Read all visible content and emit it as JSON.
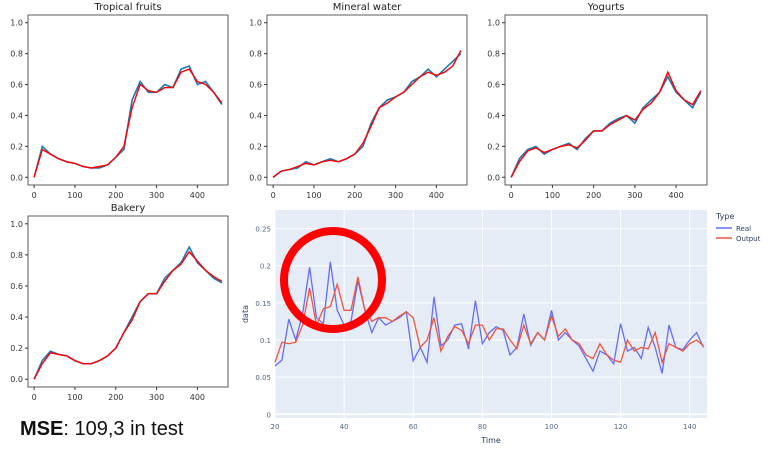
{
  "chart_data": [
    {
      "type": "line",
      "title": "Tropical fruits",
      "x": [
        0,
        20,
        40,
        60,
        80,
        100,
        120,
        140,
        160,
        180,
        200,
        220,
        240,
        260,
        280,
        300,
        320,
        340,
        360,
        380,
        400,
        420,
        440,
        460
      ],
      "series": [
        {
          "values": [
            0,
            0.2,
            0.15,
            0.12,
            0.1,
            0.09,
            0.07,
            0.06,
            0.06,
            0.08,
            0.13,
            0.18,
            0.5,
            0.62,
            0.55,
            0.55,
            0.6,
            0.58,
            0.7,
            0.72,
            0.6,
            0.62,
            0.55,
            0.47
          ],
          "color": "#1f77b4"
        },
        {
          "values": [
            0,
            0.18,
            0.15,
            0.12,
            0.1,
            0.09,
            0.07,
            0.06,
            0.07,
            0.08,
            0.13,
            0.2,
            0.45,
            0.6,
            0.56,
            0.55,
            0.58,
            0.58,
            0.68,
            0.7,
            0.62,
            0.6,
            0.55,
            0.48
          ],
          "color": "#ff0000"
        }
      ],
      "xticks": [
        0,
        100,
        200,
        300,
        400
      ],
      "yticks": [
        "0.0",
        "0.2",
        "0.4",
        "0.6",
        "0.8",
        "1.0"
      ],
      "xlim": [
        -15,
        475
      ],
      "ylim": [
        -0.05,
        1.05
      ]
    },
    {
      "type": "line",
      "title": "Mineral water",
      "x": [
        0,
        20,
        40,
        60,
        80,
        100,
        120,
        140,
        160,
        180,
        200,
        220,
        240,
        260,
        280,
        300,
        320,
        340,
        360,
        380,
        400,
        420,
        440,
        460
      ],
      "series": [
        {
          "values": [
            0,
            0.04,
            0.05,
            0.06,
            0.1,
            0.08,
            0.1,
            0.12,
            0.1,
            0.12,
            0.15,
            0.2,
            0.35,
            0.45,
            0.5,
            0.52,
            0.55,
            0.62,
            0.65,
            0.7,
            0.65,
            0.7,
            0.75,
            0.8
          ],
          "color": "#1f77b4"
        },
        {
          "values": [
            0,
            0.04,
            0.05,
            0.07,
            0.09,
            0.08,
            0.1,
            0.11,
            0.1,
            0.12,
            0.15,
            0.22,
            0.33,
            0.45,
            0.48,
            0.52,
            0.55,
            0.6,
            0.65,
            0.68,
            0.66,
            0.68,
            0.72,
            0.82
          ],
          "color": "#ff0000"
        }
      ],
      "xticks": [
        0,
        100,
        200,
        300,
        400
      ],
      "yticks": [
        "0.0",
        "0.2",
        "0.4",
        "0.6",
        "0.8",
        "1.0"
      ],
      "xlim": [
        -15,
        475
      ],
      "ylim": [
        -0.05,
        1.05
      ]
    },
    {
      "type": "line",
      "title": "Yogurts",
      "x": [
        0,
        20,
        40,
        60,
        80,
        100,
        120,
        140,
        160,
        180,
        200,
        220,
        240,
        260,
        280,
        300,
        320,
        340,
        360,
        380,
        400,
        420,
        440,
        460
      ],
      "series": [
        {
          "values": [
            0,
            0.12,
            0.18,
            0.2,
            0.15,
            0.18,
            0.2,
            0.22,
            0.18,
            0.25,
            0.3,
            0.3,
            0.35,
            0.38,
            0.4,
            0.35,
            0.45,
            0.5,
            0.55,
            0.65,
            0.55,
            0.5,
            0.45,
            0.55
          ],
          "color": "#1f77b4"
        },
        {
          "values": [
            0,
            0.1,
            0.17,
            0.19,
            0.16,
            0.18,
            0.2,
            0.21,
            0.19,
            0.24,
            0.3,
            0.3,
            0.34,
            0.37,
            0.4,
            0.37,
            0.44,
            0.48,
            0.55,
            0.68,
            0.56,
            0.5,
            0.47,
            0.56
          ],
          "color": "#ff0000"
        }
      ],
      "xticks": [
        0,
        100,
        200,
        300,
        400
      ],
      "yticks": [
        "0.0",
        "0.2",
        "0.4",
        "0.6",
        "0.8",
        "1.0"
      ],
      "xlim": [
        -15,
        475
      ],
      "ylim": [
        -0.05,
        1.05
      ]
    },
    {
      "type": "line",
      "title": "Bakery",
      "x": [
        0,
        20,
        40,
        60,
        80,
        100,
        120,
        140,
        160,
        180,
        200,
        220,
        240,
        260,
        280,
        300,
        320,
        340,
        360,
        380,
        400,
        420,
        440,
        460
      ],
      "series": [
        {
          "values": [
            0,
            0.12,
            0.18,
            0.16,
            0.15,
            0.12,
            0.1,
            0.1,
            0.12,
            0.15,
            0.2,
            0.3,
            0.4,
            0.5,
            0.55,
            0.55,
            0.65,
            0.7,
            0.75,
            0.85,
            0.75,
            0.7,
            0.65,
            0.62
          ],
          "color": "#1f77b4"
        },
        {
          "values": [
            0,
            0.1,
            0.17,
            0.16,
            0.15,
            0.12,
            0.1,
            0.1,
            0.12,
            0.15,
            0.2,
            0.3,
            0.38,
            0.5,
            0.55,
            0.55,
            0.63,
            0.7,
            0.74,
            0.82,
            0.76,
            0.7,
            0.66,
            0.63
          ],
          "color": "#ff0000"
        }
      ],
      "xticks": [
        0,
        100,
        200,
        300,
        400
      ],
      "yticks": [
        "0.0",
        "0.2",
        "0.4",
        "0.6",
        "0.8",
        "1.0"
      ],
      "xlim": [
        -15,
        475
      ],
      "ylim": [
        -0.05,
        1.05
      ]
    },
    {
      "type": "line",
      "xlabel": "Time",
      "ylabel": "data",
      "legend_title": "Type",
      "legend": "top-right",
      "x": [
        20,
        22,
        24,
        26,
        28,
        30,
        32,
        34,
        36,
        38,
        40,
        42,
        44,
        46,
        48,
        50,
        52,
        54,
        56,
        58,
        60,
        62,
        64,
        66,
        68,
        70,
        72,
        74,
        76,
        78,
        80,
        82,
        84,
        86,
        88,
        90,
        92,
        94,
        96,
        98,
        100,
        102,
        104,
        106,
        108,
        110,
        112,
        114,
        116,
        118,
        120,
        122,
        124,
        126,
        128,
        130,
        132,
        134,
        136,
        138,
        140,
        142,
        144
      ],
      "series": [
        {
          "name": "Real",
          "color": "#636efa",
          "values": [
            0.065,
            0.073,
            0.128,
            0.1,
            0.135,
            0.198,
            0.13,
            0.122,
            0.205,
            0.14,
            0.12,
            0.125,
            0.18,
            0.14,
            0.11,
            0.13,
            0.12,
            0.125,
            0.13,
            0.138,
            0.072,
            0.09,
            0.07,
            0.158,
            0.092,
            0.1,
            0.12,
            0.122,
            0.088,
            0.153,
            0.095,
            0.11,
            0.118,
            0.113,
            0.08,
            0.09,
            0.135,
            0.093,
            0.11,
            0.1,
            0.14,
            0.1,
            0.11,
            0.1,
            0.092,
            0.075,
            0.058,
            0.085,
            0.08,
            0.068,
            0.122,
            0.085,
            0.09,
            0.075,
            0.117,
            0.09,
            0.055,
            0.12,
            0.09,
            0.087,
            0.1,
            0.11,
            0.09
          ]
        },
        {
          "name": "Output",
          "color": "#ef553b",
          "values": [
            0.07,
            0.097,
            0.095,
            0.097,
            0.12,
            0.17,
            0.12,
            0.142,
            0.145,
            0.175,
            0.14,
            0.14,
            0.185,
            0.14,
            0.125,
            0.13,
            0.13,
            0.125,
            0.132,
            0.138,
            0.13,
            0.09,
            0.1,
            0.13,
            0.085,
            0.105,
            0.118,
            0.113,
            0.095,
            0.12,
            0.12,
            0.1,
            0.115,
            0.115,
            0.1,
            0.088,
            0.12,
            0.095,
            0.11,
            0.1,
            0.132,
            0.105,
            0.115,
            0.1,
            0.095,
            0.08,
            0.075,
            0.095,
            0.08,
            0.073,
            0.07,
            0.1,
            0.085,
            0.09,
            0.088,
            0.11,
            0.07,
            0.095,
            0.09,
            0.085,
            0.095,
            0.1,
            0.092
          ]
        }
      ],
      "xticks": [
        "20",
        "40",
        "60",
        "80",
        "100",
        "120",
        "140"
      ],
      "yticks": [
        "0",
        "0.05",
        "0.1",
        "0.15",
        "0.2",
        "0.25"
      ],
      "xlim": [
        20,
        145
      ],
      "ylim": [
        -0.005,
        0.275
      ],
      "annotation": "red-circle-highlight"
    }
  ],
  "mse": {
    "label": "MSE",
    "value": ": 109,3 in test"
  }
}
